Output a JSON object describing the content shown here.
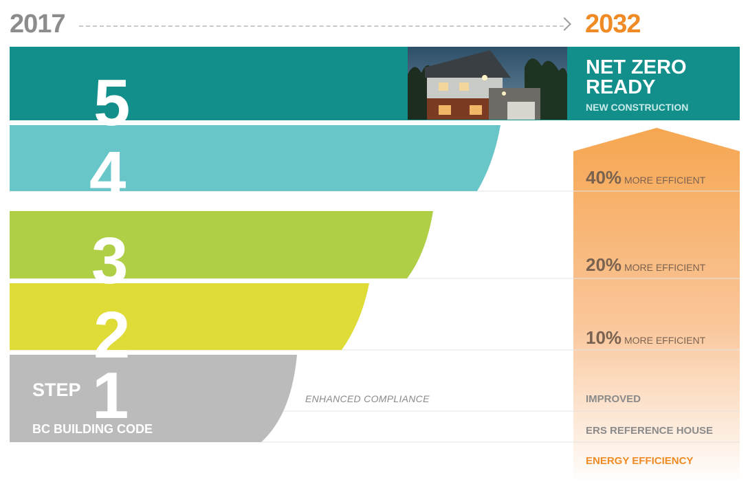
{
  "timeline": {
    "start_year": "2017",
    "end_year": "2032"
  },
  "steps": [
    {
      "number": "5",
      "color": "#138f8b"
    },
    {
      "number": "4",
      "color": "#68c6c9"
    },
    {
      "number": "3",
      "color": "#afcf46"
    },
    {
      "number": "2",
      "color": "#dfdb37"
    },
    {
      "number": "1",
      "color": "#bbbbbb"
    }
  ],
  "step_word": "STEP",
  "base_label": "BC BUILDING CODE",
  "compliance_label": "ENHANCED COMPLIANCE",
  "net_zero": {
    "title": "NET ZERO READY",
    "subtitle": "NEW CONSTRUCTION"
  },
  "efficiency": [
    {
      "percent": "40%",
      "text": "MORE EFFICIENT"
    },
    {
      "percent": "20%",
      "text": "MORE EFFICIENT"
    },
    {
      "percent": "10%",
      "text": "MORE EFFICIENT"
    }
  ],
  "axis_labels": {
    "improved": "IMPROVED",
    "reference": "ERS REFERENCE HOUSE",
    "measure": "ENERGY EFFICIENCY"
  },
  "colors": {
    "accent": "#f08a24",
    "arrow_top": "#f6a650",
    "gray_text": "#8c8c8c"
  }
}
